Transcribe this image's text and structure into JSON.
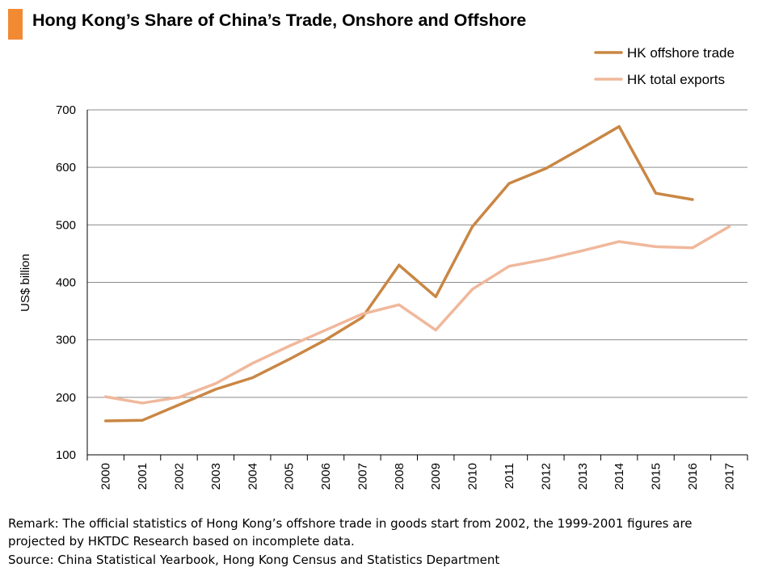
{
  "title": "Hong Kong’s Share of China’s Trade, Onshore and Offshore",
  "remark_line1": "Remark: The official statistics of Hong Kong’s offshore trade in goods start from 2002, the 1999-2001 figures are",
  "remark_line2": "projected by HKTDC Research based on incomplete data.",
  "source": "Source: China Statistical Yearbook, Hong Kong Census and Statistics Department",
  "colors": {
    "accent": "#f28a33",
    "offshore": "#c98744",
    "exports": "#f0b89c",
    "grid": "#8c8c8c"
  },
  "chart_data": {
    "type": "line",
    "title": "Hong Kong’s Share of China’s Trade, Onshore and Offshore",
    "xlabel": "",
    "ylabel": "US$ billion",
    "ylim": [
      100,
      700
    ],
    "yticks": [
      100,
      200,
      300,
      400,
      500,
      600,
      700
    ],
    "grid": true,
    "legend_position": "top-right",
    "categories": [
      "2000",
      "2001",
      "2002",
      "2003",
      "2004",
      "2005",
      "2006",
      "2007",
      "2008",
      "2009",
      "2010",
      "2011",
      "2012",
      "2013",
      "2014",
      "2015",
      "2016",
      "2017"
    ],
    "series": [
      {
        "name": "HK offshore trade",
        "color": "#c98744",
        "values": [
          159,
          160,
          187,
          214,
          234,
          266,
          300,
          339,
          430,
          375,
          497,
          572,
          598,
          634,
          671,
          555,
          544,
          null
        ]
      },
      {
        "name": "HK total exports",
        "color": "#f0b89c",
        "values": [
          201,
          190,
          200,
          224,
          259,
          289,
          317,
          345,
          361,
          317,
          388,
          428,
          440,
          455,
          471,
          462,
          460,
          497
        ]
      }
    ]
  }
}
